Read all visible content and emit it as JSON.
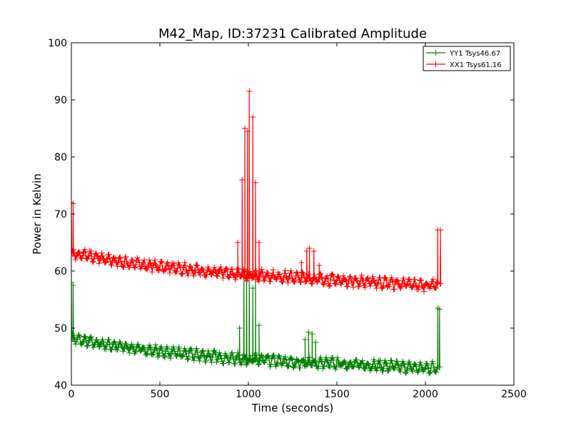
{
  "chart_data": {
    "type": "line",
    "title": "M42_Map, ID:37231 Calibrated Amplitude",
    "xlabel": "Time (seconds)",
    "ylabel": "Power in Kelvin",
    "xlim": [
      0,
      2500
    ],
    "ylim": [
      40,
      100
    ],
    "x_ticks": [
      0,
      500,
      1000,
      1500,
      2000,
      2500
    ],
    "y_ticks": [
      40,
      50,
      60,
      70,
      80,
      90,
      100
    ],
    "grid": false,
    "legend_position": "top-right",
    "marker": "+",
    "series": [
      {
        "name": "YY1 Tsys46.67",
        "color": "#008000",
        "baseline": [
          [
            0,
            48.2
          ],
          [
            100,
            47.6
          ],
          [
            250,
            46.9
          ],
          [
            500,
            45.9
          ],
          [
            750,
            45.2
          ],
          [
            950,
            44.6
          ],
          [
            1100,
            44.4
          ],
          [
            1250,
            44.0
          ],
          [
            1500,
            43.8
          ],
          [
            1750,
            43.4
          ],
          [
            2000,
            43.0
          ],
          [
            2070,
            43.2
          ]
        ],
        "noise": 0.9,
        "spikes": [
          [
            0,
            58.0
          ],
          [
            10,
            57.5
          ],
          [
            950,
            50.0
          ],
          [
            975,
            59.0
          ],
          [
            990,
            60.0
          ],
          [
            1005,
            59.5
          ],
          [
            1025,
            57.0
          ],
          [
            1040,
            59.5
          ],
          [
            1060,
            50.5
          ],
          [
            1320,
            48.0
          ],
          [
            1340,
            49.3
          ],
          [
            1360,
            49.0
          ],
          [
            1380,
            47.5
          ],
          [
            2070,
            53.5
          ],
          [
            2080,
            53.3
          ]
        ]
      },
      {
        "name": "XX1 Tsys61.16",
        "color": "#ff0000",
        "baseline": [
          [
            0,
            63.2
          ],
          [
            100,
            62.6
          ],
          [
            250,
            61.7
          ],
          [
            500,
            60.8
          ],
          [
            750,
            60.0
          ],
          [
            950,
            59.4
          ],
          [
            1100,
            59.2
          ],
          [
            1250,
            58.9
          ],
          [
            1500,
            58.4
          ],
          [
            1750,
            58.0
          ],
          [
            2000,
            57.5
          ],
          [
            2070,
            57.8
          ]
        ],
        "noise": 0.9,
        "spikes": [
          [
            0,
            72.0
          ],
          [
            10,
            71.8
          ],
          [
            940,
            65.0
          ],
          [
            965,
            76.0
          ],
          [
            980,
            85.0
          ],
          [
            995,
            84.5
          ],
          [
            1005,
            91.5
          ],
          [
            1025,
            87.0
          ],
          [
            1040,
            75.5
          ],
          [
            1060,
            65.0
          ],
          [
            1300,
            61.5
          ],
          [
            1330,
            63.5
          ],
          [
            1345,
            64.0
          ],
          [
            1370,
            63.5
          ],
          [
            1400,
            61.0
          ],
          [
            2070,
            67.2
          ],
          [
            2085,
            67.2
          ]
        ]
      }
    ]
  }
}
